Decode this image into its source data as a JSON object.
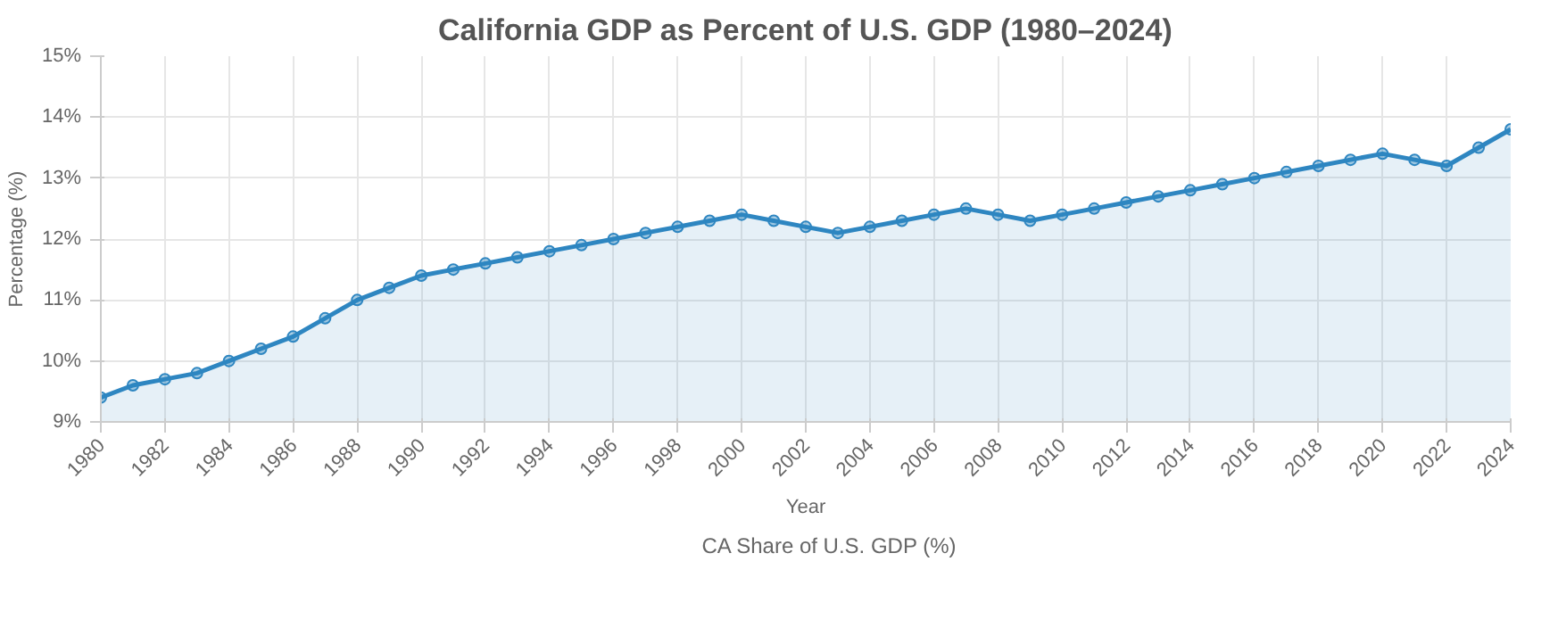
{
  "chart_data": {
    "type": "area",
    "title": "California GDP as Percent of U.S. GDP (1980–2024)",
    "xlabel": "Year",
    "ylabel": "Percentage (%)",
    "x": [
      1980,
      1981,
      1982,
      1983,
      1984,
      1985,
      1986,
      1987,
      1988,
      1989,
      1990,
      1991,
      1992,
      1993,
      1994,
      1995,
      1996,
      1997,
      1998,
      1999,
      2000,
      2001,
      2002,
      2003,
      2004,
      2005,
      2006,
      2007,
      2008,
      2009,
      2010,
      2011,
      2012,
      2013,
      2014,
      2015,
      2016,
      2017,
      2018,
      2019,
      2020,
      2021,
      2022,
      2023,
      2024
    ],
    "series": [
      {
        "name": "CA Share of U.S. GDP (%)",
        "color": "#2e86c1",
        "values": [
          9.4,
          9.6,
          9.7,
          9.8,
          10.0,
          10.2,
          10.4,
          10.7,
          11.0,
          11.2,
          11.4,
          11.5,
          11.6,
          11.7,
          11.8,
          11.9,
          12.0,
          12.1,
          12.2,
          12.3,
          12.4,
          12.3,
          12.2,
          12.1,
          12.2,
          12.3,
          12.4,
          12.5,
          12.4,
          12.3,
          12.4,
          12.5,
          12.6,
          12.7,
          12.8,
          12.9,
          13.0,
          13.1,
          13.2,
          13.3,
          13.4,
          13.3,
          13.2,
          13.5,
          13.8
        ]
      }
    ],
    "xlim": [
      1980,
      2024
    ],
    "xticks": [
      1980,
      1982,
      1984,
      1986,
      1988,
      1990,
      1992,
      1994,
      1996,
      1998,
      2000,
      2002,
      2004,
      2006,
      2008,
      2010,
      2012,
      2014,
      2016,
      2018,
      2020,
      2022,
      2024
    ],
    "ylim": [
      9,
      15
    ],
    "yticks": [
      {
        "value": 9,
        "label": "9%"
      },
      {
        "value": 10,
        "label": "10%"
      },
      {
        "value": 11,
        "label": "11%"
      },
      {
        "value": 12,
        "label": "12%"
      },
      {
        "value": 13,
        "label": "13%"
      },
      {
        "value": 14,
        "label": "14%"
      },
      {
        "value": 15,
        "label": "15%"
      }
    ],
    "grid": true,
    "legend": "bottom",
    "marker": "circle",
    "line_style": "solid"
  }
}
